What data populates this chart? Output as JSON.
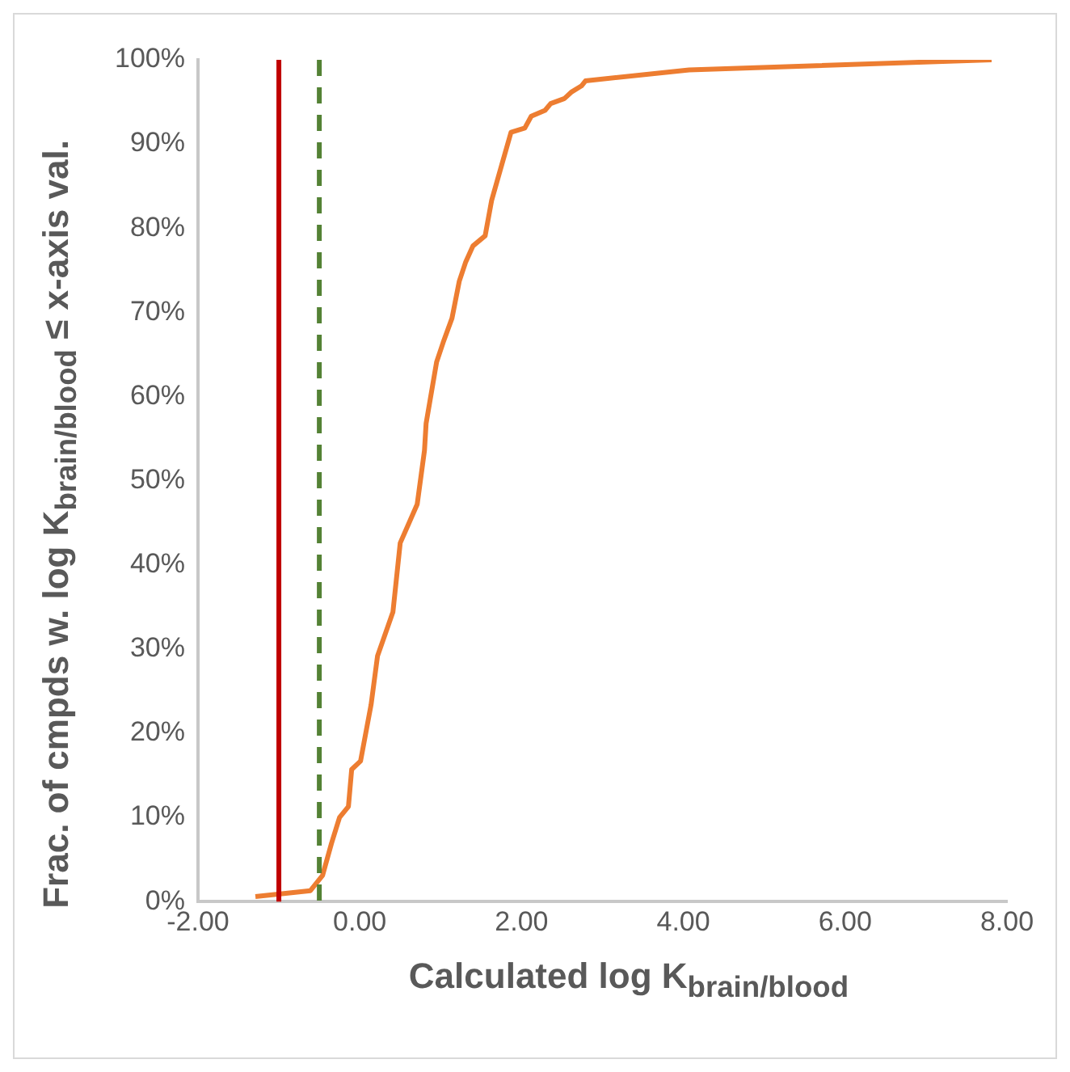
{
  "chart_data": {
    "type": "line",
    "xlabel": "Calculated log K$_{brain/blood}$",
    "ylabel": "Frac. of cmpds w. log K$_{brain/blood}$ ≤ x-axis val.",
    "series": [
      {
        "color": "#ed7d31",
        "x": [
          -1.29,
          -0.61,
          -0.46,
          -0.35,
          -0.25,
          -0.14,
          -0.1,
          0.01,
          0.14,
          0.22,
          0.41,
          0.5,
          0.71,
          0.8,
          0.82,
          0.95,
          1.03,
          1.14,
          1.23,
          1.31,
          1.4,
          1.55,
          1.63,
          1.76,
          1.87,
          2.04,
          2.12,
          2.29,
          2.36,
          2.53,
          2.62,
          2.74,
          2.79,
          4.07,
          7.81
        ],
        "values": [
          0.6,
          1.3,
          3.1,
          6.9,
          10.0,
          11.3,
          15.7,
          16.7,
          23.4,
          29.2,
          34.4,
          42.6,
          47.2,
          53.6,
          56.8,
          64.1,
          66.4,
          69.3,
          73.7,
          76.0,
          77.9,
          79.1,
          83.3,
          87.7,
          91.4,
          91.9,
          93.3,
          94.0,
          94.8,
          95.4,
          96.2,
          96.9,
          97.5,
          98.8,
          100
        ]
      }
    ],
    "xlim": [
      -2,
      8
    ],
    "xticks": [
      {
        "value": -2,
        "label": "-2.00"
      },
      {
        "value": 0,
        "label": "0.00"
      },
      {
        "value": 2,
        "label": "2.00"
      },
      {
        "value": 4,
        "label": "4.00"
      },
      {
        "value": 6,
        "label": "6.00"
      },
      {
        "value": 8,
        "label": "8.00"
      }
    ],
    "ylim": [
      0,
      100
    ],
    "yticks": [
      {
        "value": 0,
        "label": "0%"
      },
      {
        "value": 10,
        "label": "10%"
      },
      {
        "value": 20,
        "label": "20%"
      },
      {
        "value": 30,
        "label": "30%"
      },
      {
        "value": 40,
        "label": "40%"
      },
      {
        "value": 50,
        "label": "50%"
      },
      {
        "value": 60,
        "label": "60%"
      },
      {
        "value": 70,
        "label": "70%"
      },
      {
        "value": 80,
        "label": "80%"
      },
      {
        "value": 90,
        "label": "90%"
      },
      {
        "value": 100,
        "label": "100%"
      }
    ],
    "ref_lines": [
      {
        "axis": "x",
        "value": -1,
        "color": "#c00000",
        "line_style": "solid"
      },
      {
        "axis": "x",
        "value": -0.5,
        "color": "#548235",
        "line_style": "dashed"
      }
    ],
    "grid": false,
    "legend": false,
    "marker": "none",
    "line_style": "solid"
  }
}
